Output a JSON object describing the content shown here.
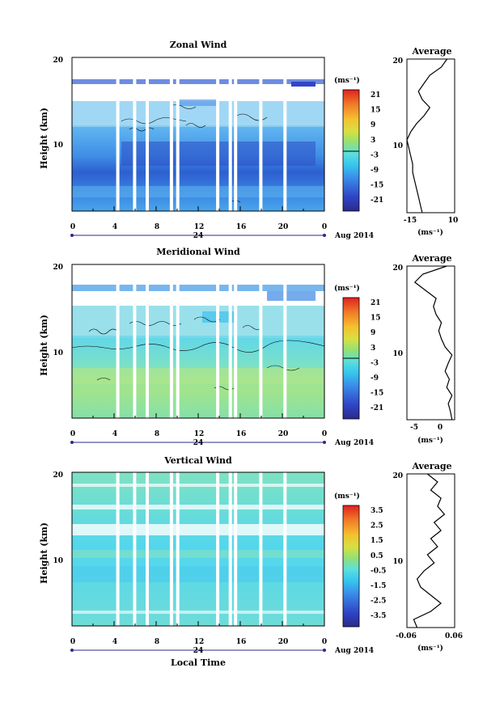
{
  "chart_data": [
    {
      "type": "heatmap",
      "title": "Zonal Wind",
      "ylabel": "Height (km)",
      "y_ticks": [
        "20",
        "10"
      ],
      "ylim": [
        1,
        20
      ],
      "x_ticks": [
        "0",
        "4",
        "8",
        "12",
        "16",
        "20",
        "0"
      ],
      "xlim": [
        0,
        24
      ],
      "date_mark": "24",
      "date_label": "Aug 2014",
      "colorbar": {
        "unit": "(ms⁻¹)",
        "labels": [
          "21",
          "15",
          "9",
          "3",
          "-3",
          "-9",
          "-15",
          "-21"
        ],
        "range": [
          -24,
          24
        ]
      },
      "gaps_hours": [
        4.2,
        5.8,
        7.0,
        9.3,
        9.9,
        13.7,
        14.9,
        15.4,
        17.8,
        20.1
      ],
      "profile": {
        "title": "Average",
        "x_ticks": [
          "-15",
          "10"
        ],
        "xlim": [
          -15,
          10
        ],
        "xlabel": "(ms⁻¹)",
        "y_ticks": [
          "20",
          "10"
        ],
        "heights_km": [
          1,
          2,
          3,
          4,
          5,
          6,
          7,
          8,
          9,
          10,
          11,
          12,
          13,
          14,
          15,
          16,
          17,
          18,
          19,
          20
        ],
        "values": [
          -7,
          -8,
          -9,
          -10,
          -11,
          -12,
          -12,
          -13,
          -14,
          -15,
          -13,
          -10,
          -6,
          -3,
          -7,
          -9,
          -6,
          -3,
          3,
          6
        ]
      }
    },
    {
      "type": "heatmap",
      "title": "Meridional Wind",
      "ylabel": "Height (km)",
      "y_ticks": [
        "20",
        "10"
      ],
      "ylim": [
        1,
        20
      ],
      "x_ticks": [
        "0",
        "4",
        "8",
        "12",
        "16",
        "20",
        "0"
      ],
      "xlim": [
        0,
        24
      ],
      "date_mark": "24",
      "date_label": "Aug 2014",
      "colorbar": {
        "unit": "(ms⁻¹)",
        "labels": [
          "21",
          "15",
          "9",
          "3",
          "-3",
          "-9",
          "-15",
          "-21"
        ],
        "range": [
          -24,
          24
        ]
      },
      "gaps_hours": [
        4.2,
        5.8,
        7.0,
        9.3,
        9.9,
        13.7,
        14.9,
        15.4,
        17.8,
        20.1
      ],
      "profile": {
        "title": "Average",
        "x_ticks": [
          "-5",
          "0"
        ],
        "xlim": [
          -7,
          2
        ],
        "xlabel": "(ms⁻¹)",
        "y_ticks": [
          "20",
          "10"
        ],
        "heights_km": [
          1,
          2,
          3,
          4,
          5,
          6,
          7,
          8,
          9,
          10,
          11,
          12,
          13,
          14,
          15,
          16,
          17,
          18,
          19,
          20
        ],
        "values": [
          1.5,
          1.2,
          0.8,
          1.5,
          0.5,
          1.0,
          0.2,
          0.8,
          1.5,
          0.2,
          -0.5,
          -1.0,
          -0.5,
          -1.5,
          -2.0,
          -1.5,
          -3.5,
          -5.5,
          -4.0,
          0.5
        ]
      }
    },
    {
      "type": "heatmap",
      "title": "Vertical Wind",
      "ylabel": "Height (km)",
      "xlabel": "Local Time",
      "y_ticks": [
        "20",
        "10"
      ],
      "ylim": [
        1,
        20
      ],
      "x_ticks": [
        "0",
        "4",
        "8",
        "12",
        "16",
        "20",
        "0"
      ],
      "xlim": [
        0,
        24
      ],
      "date_mark": "24",
      "date_label": "Aug 2014",
      "colorbar": {
        "unit": "(ms⁻¹)",
        "labels": [
          "3.5",
          "2.5",
          "1.5",
          "0.5",
          "-0.5",
          "-1.5",
          "-2.5",
          "-3.5"
        ],
        "range": [
          -4,
          4
        ]
      },
      "gaps_hours": [
        4.2,
        5.8,
        7.0,
        9.3,
        9.9,
        13.7,
        14.9,
        15.4,
        17.8,
        20.1
      ],
      "profile": {
        "title": "Average",
        "x_ticks": [
          "-0.06",
          "0.06"
        ],
        "xlim": [
          -0.07,
          0.07
        ],
        "xlabel": "(ms⁻¹)",
        "y_ticks": [
          "20",
          "10"
        ],
        "heights_km": [
          1,
          2,
          3,
          4,
          5,
          6,
          7,
          8,
          9,
          10,
          11,
          12,
          13,
          14,
          15,
          16,
          17,
          18,
          19,
          20
        ],
        "values": [
          -0.04,
          -0.05,
          0.0,
          0.03,
          0.0,
          -0.03,
          -0.04,
          -0.02,
          0.01,
          -0.01,
          0.02,
          0.0,
          0.03,
          0.01,
          0.04,
          0.02,
          0.03,
          0.0,
          0.02,
          -0.01
        ]
      }
    }
  ]
}
